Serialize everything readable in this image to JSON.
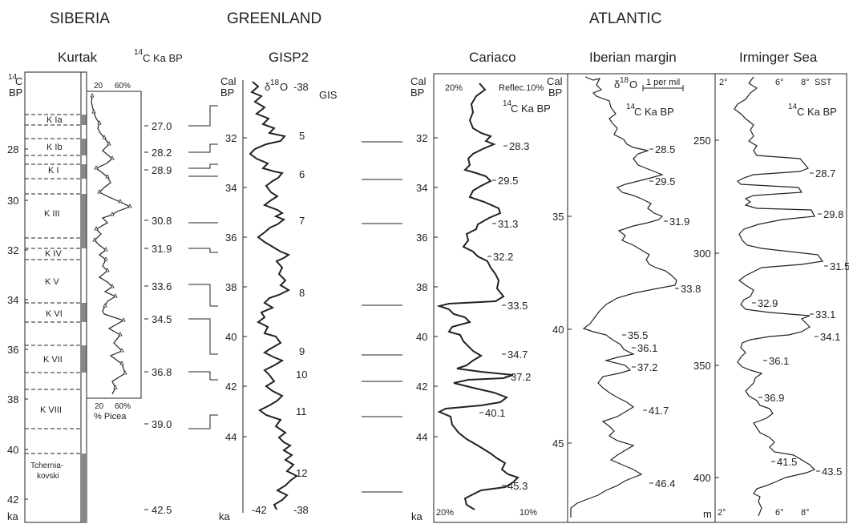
{
  "regions": {
    "siberia": "SIBERIA",
    "greenland": "GREENLAND",
    "atlantic": "ATLANTIC"
  },
  "siberia": {
    "title": "Kurtak",
    "c14_heading_sup": "14",
    "c14_heading": "C Ka BP",
    "axis_sup": "14",
    "axis_c": "C",
    "axis_bp": "BP",
    "axis_ka": "ka",
    "ticks": [
      "28",
      "30",
      "32",
      "34",
      "36",
      "38",
      "40",
      "42"
    ],
    "units": [
      "K Ia",
      "K Ib",
      "K I",
      "K III",
      "K IV",
      "K V",
      "K VI",
      "K VII",
      "K VIII"
    ],
    "tchern1": "Tchernia-",
    "tchern2": "kovski",
    "picea_top": [
      "20",
      "60%"
    ],
    "picea_bottom": [
      "20",
      "60%"
    ],
    "picea_label": "% Picea",
    "c14_dates": [
      "27.0",
      "28.2",
      "28.9",
      "30.8",
      "31.9",
      "33.6",
      "34.5",
      "36.8",
      "39.0",
      "42.5"
    ]
  },
  "greenland": {
    "title": "GISP2",
    "cal": "Cal",
    "bp": "BP",
    "ka": "ka",
    "d18o_prefix": "δ",
    "d18o_sup": "18",
    "d18o_suffix": "O",
    "top_value": "-38",
    "gis_label": "GIS",
    "ticks": [
      "32",
      "34",
      "36",
      "38",
      "40",
      "42",
      "44"
    ],
    "gis": [
      "5",
      "6",
      "7",
      "8",
      "9",
      "10",
      "11",
      "12"
    ],
    "bottom_ticks": [
      "-42",
      "-38"
    ]
  },
  "cariaco": {
    "title": "Cariaco",
    "cal": "Cal",
    "bp": "BP",
    "ka": "ka",
    "top_left": "20%",
    "top_right": "Reflec.10%",
    "c14_sup": "14",
    "c14": "C Ka BP",
    "ticks": [
      "32",
      "34",
      "36",
      "38",
      "40",
      "42",
      "44"
    ],
    "dates": [
      "28.3",
      "29.5",
      "31.3",
      "32.2",
      "33.5",
      "34.7",
      "37.2",
      "40.1",
      "45.3"
    ],
    "bottom_left": "20%",
    "bottom_right": "10%"
  },
  "iberian": {
    "title": "Iberian margin",
    "cal": "Cal",
    "bp": "BP",
    "d18o_prefix": "δ",
    "d18o_sup": "18",
    "d18o_suffix": "O",
    "scale": "1 per mil",
    "c14_sup": "14",
    "c14": "C Ka BP",
    "ticks": [
      "35",
      "40",
      "45"
    ],
    "dates": [
      "28.5",
      "29.5",
      "31.9",
      "33.8",
      "35.5",
      "36.1",
      "37.2",
      "41.7",
      "46.4"
    ]
  },
  "irminger": {
    "title": "Irminger Sea",
    "top_ticks": [
      "2°",
      "6°",
      "8°"
    ],
    "sst": "SST",
    "c14_sup": "14",
    "c14": "C Ka BP",
    "depth_ticks": [
      "250",
      "300",
      "350",
      "400"
    ],
    "m": "m",
    "dates": [
      "28.7",
      "29.8",
      "31.5",
      "32.9",
      "33.1",
      "34.1",
      "36.1",
      "36.9",
      "41.5",
      "43.5"
    ],
    "bottom_ticks": [
      "2°",
      "6°",
      "8°"
    ]
  }
}
